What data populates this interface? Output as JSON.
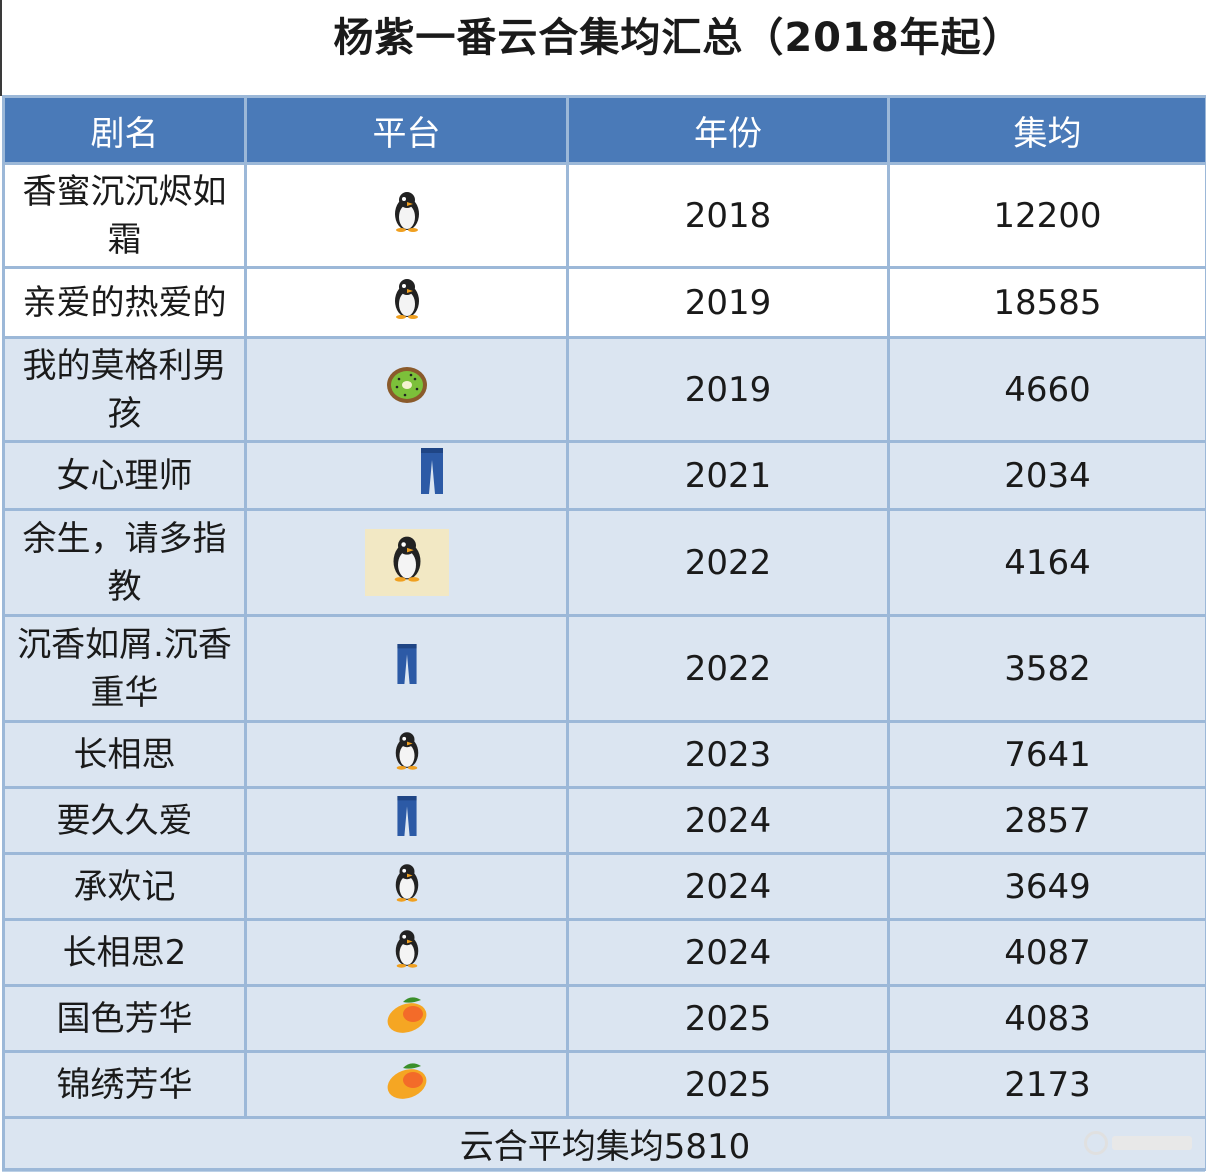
{
  "title": "杨紫一番云合集均汇总（2018年起）",
  "headers": [
    "剧名",
    "平台",
    "年份",
    "集均"
  ],
  "rows": [
    {
      "name": "香蜜沉沉烬如霜",
      "platform": "penguin-icon",
      "year": "2018",
      "avg": "12200"
    },
    {
      "name": "亲爱的热爱的",
      "platform": "penguin-icon",
      "year": "2019",
      "avg": "18585"
    },
    {
      "name": "我的莫格利男孩",
      "platform": "kiwi-icon",
      "year": "2019",
      "avg": "4660"
    },
    {
      "name": "女心理师",
      "platform": "jeans-icon",
      "year": "2021",
      "avg": "2034"
    },
    {
      "name": "余生，请多指教",
      "platform": "penguin-icon",
      "year": "2022",
      "avg": "4164"
    },
    {
      "name": "沉香如屑.沉香重华",
      "platform": "jeans-icon",
      "year": "2022",
      "avg": "3582"
    },
    {
      "name": "长相思",
      "platform": "penguin-icon",
      "year": "2023",
      "avg": "7641"
    },
    {
      "name": "要久久爱",
      "platform": "jeans-icon",
      "year": "2024",
      "avg": "2857"
    },
    {
      "name": "承欢记",
      "platform": "penguin-icon",
      "year": "2024",
      "avg": "3649"
    },
    {
      "name": "长相思2",
      "platform": "penguin-icon",
      "year": "2024",
      "avg": "4087"
    },
    {
      "name": "国色芳华",
      "platform": "mango-icon",
      "year": "2025",
      "avg": "4083"
    },
    {
      "name": "锦绣芳华",
      "platform": "mango-icon",
      "year": "2025",
      "avg": "2173"
    }
  ],
  "footer": "云合平均集均5810",
  "colors": {
    "header_bg": "#4a7ab8",
    "row_blue": "#dbe5f1",
    "border": "#9cb8d8"
  }
}
